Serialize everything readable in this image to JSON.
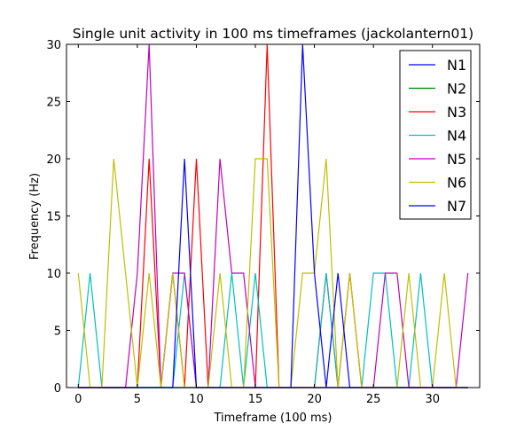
{
  "chart_data": {
    "type": "line",
    "title": "Single unit activity in 100 ms timeframes (jackolantern01)",
    "xlabel": "Timeframe (100 ms)",
    "ylabel": "Frequency (Hz)",
    "xlim": [
      -1,
      34
    ],
    "ylim": [
      0,
      30
    ],
    "x_ticks": [
      0,
      5,
      10,
      15,
      20,
      25,
      30
    ],
    "y_ticks": [
      0,
      5,
      10,
      15,
      20,
      25,
      30
    ],
    "grid": false,
    "legend_position": "top-right",
    "x": [
      0,
      1,
      2,
      3,
      4,
      5,
      6,
      7,
      8,
      9,
      10,
      11,
      12,
      13,
      14,
      15,
      16,
      17,
      18,
      19,
      20,
      21,
      22,
      23,
      24,
      25,
      26,
      27,
      28,
      29,
      30,
      31,
      32,
      33
    ],
    "series": [
      {
        "name": "N1",
        "color": "#0000ff",
        "values": [
          0,
          0,
          0,
          0,
          0,
          0,
          0,
          0,
          0,
          0,
          0,
          0,
          0,
          0,
          0,
          0,
          0,
          0,
          0,
          0,
          0,
          0,
          0,
          0,
          0,
          0,
          0,
          0,
          0,
          0,
          0,
          0,
          0,
          0
        ]
      },
      {
        "name": "N2",
        "color": "#008000",
        "values": [
          0,
          0,
          0,
          0,
          0,
          0,
          0,
          0,
          0,
          0,
          0,
          0,
          0,
          0,
          0,
          0,
          0,
          0,
          0,
          0,
          0,
          0,
          0,
          0,
          0,
          0,
          0,
          0,
          0,
          0,
          0,
          0,
          0,
          0
        ]
      },
      {
        "name": "N3",
        "color": "#ff0000",
        "values": [
          0,
          0,
          0,
          0,
          0,
          0,
          20,
          0,
          10,
          0,
          20,
          0,
          0,
          0,
          0,
          0,
          30,
          0,
          0,
          0,
          0,
          10,
          0,
          10,
          0,
          0,
          0,
          0,
          0,
          0,
          0,
          0,
          0,
          0
        ]
      },
      {
        "name": "N4",
        "color": "#00bfbf",
        "values": [
          0,
          10,
          0,
          0,
          0,
          0,
          0,
          0,
          0,
          10,
          0,
          0,
          0,
          10,
          0,
          10,
          0,
          0,
          0,
          0,
          0,
          10,
          0,
          0,
          0,
          10,
          10,
          0,
          0,
          10,
          0,
          0,
          0,
          0
        ]
      },
      {
        "name": "N5",
        "color": "#bf00bf",
        "values": [
          0,
          0,
          0,
          0,
          0,
          10,
          30,
          0,
          10,
          10,
          0,
          0,
          20,
          10,
          10,
          0,
          0,
          0,
          0,
          0,
          0,
          0,
          0,
          0,
          0,
          0,
          10,
          10,
          0,
          0,
          0,
          0,
          0,
          10
        ]
      },
      {
        "name": "N6",
        "color": "#bfbf00",
        "values": [
          10,
          0,
          0,
          20,
          10,
          0,
          10,
          0,
          10,
          0,
          0,
          0,
          10,
          0,
          0,
          20,
          20,
          0,
          0,
          10,
          10,
          20,
          0,
          10,
          0,
          0,
          0,
          0,
          10,
          0,
          0,
          10,
          0,
          0
        ]
      },
      {
        "name": "N7",
        "color": "#0000ff",
        "values": [
          0,
          0,
          0,
          0,
          0,
          0,
          0,
          0,
          0,
          20,
          0,
          0,
          0,
          0,
          0,
          0,
          0,
          0,
          0,
          30,
          10,
          0,
          10,
          0,
          0,
          0,
          0,
          0,
          0,
          0,
          0,
          0,
          0,
          0
        ]
      }
    ]
  }
}
